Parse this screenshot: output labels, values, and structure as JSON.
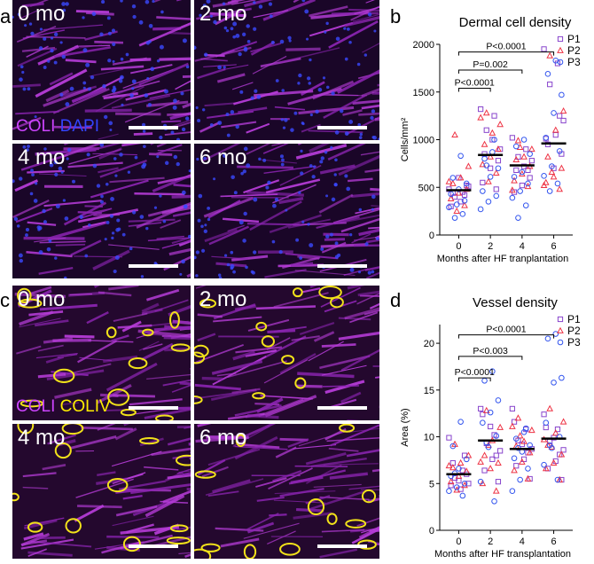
{
  "panels": {
    "a": {
      "letter": "a",
      "images": [
        {
          "label": "0 mo",
          "scale_bar": true,
          "stain": [
            "COLI",
            "DAPI"
          ]
        },
        {
          "label": "2 mo",
          "scale_bar": true
        },
        {
          "label": "4 mo",
          "scale_bar": true
        },
        {
          "label": "6 mo",
          "scale_bar": true
        }
      ],
      "stain_colors": {
        "COLI": "#cc44ff",
        "DAPI": "#3344ff"
      }
    },
    "c": {
      "letter": "c",
      "images": [
        {
          "label": "0 mo",
          "scale_bar": true,
          "stain": [
            "COLI",
            "COLIV"
          ]
        },
        {
          "label": "2 mo",
          "scale_bar": true
        },
        {
          "label": "4 mo",
          "scale_bar": true
        },
        {
          "label": "6 mo",
          "scale_bar": true
        }
      ],
      "stain_colors": {
        "COLI": "#cc44ff",
        "COLIV": "#ffee00"
      }
    },
    "b": {
      "letter": "b"
    },
    "d": {
      "letter": "d"
    }
  },
  "chart_data": [
    {
      "type": "scatter",
      "title": "Dermal cell density",
      "xlabel": "Months after HF tranplantation",
      "ylabel": "Cells/mm²",
      "categories": [
        "0",
        "2",
        "4",
        "6"
      ],
      "ylim": [
        0,
        2000
      ],
      "yticks": [
        "0",
        "500",
        "1000",
        "1500",
        "2000"
      ],
      "means": [
        470,
        840,
        730,
        960
      ],
      "legend_position": "top-right",
      "series": [
        {
          "name": "P1",
          "marker": "square",
          "color": "#8844cc",
          "values": [
            [
              480,
              450,
              400,
              510,
              350,
              440,
              520,
              600,
              300,
              420
            ],
            [
              1320,
              1250,
              1100,
              900,
              1000,
              850,
              780,
              700,
              550,
              480
            ],
            [
              1020,
              900,
              820,
              780,
              720,
              680,
              600,
              520,
              450,
              680
            ],
            [
              1950,
              1800,
              1580,
              1200,
              1050,
              950,
              850,
              700,
              1010,
              1250
            ]
          ]
        },
        {
          "name": "P2",
          "marker": "triangle",
          "color": "#ee3344",
          "values": [
            [
              1050,
              720,
              600,
              540,
              480,
              440,
              380,
              310,
              250,
              560
            ],
            [
              1280,
              1160,
              1070,
              950,
              900,
              820,
              740,
              650,
              560,
              1230
            ],
            [
              990,
              900,
              820,
              790,
              720,
              640,
              570,
              510,
              920,
              470
            ],
            [
              1880,
              1300,
              1100,
              820,
              700,
              610,
              550,
              480,
              660,
              520
            ]
          ]
        },
        {
          "name": "P3",
          "marker": "circle",
          "color": "#3355ee",
          "values": [
            [
              830,
              600,
              540,
              480,
              430,
              360,
              320,
              290,
              220,
              180
            ],
            [
              870,
              800,
              700,
              610,
              460,
              410,
              350,
              270,
              1000,
              730
            ],
            [
              1000,
              930,
              850,
              660,
              610,
              540,
              460,
              390,
              310,
              180
            ],
            [
              1830,
              1690,
              1470,
              1280,
              1020,
              880,
              720,
              620,
              540,
              460
            ]
          ]
        }
      ],
      "annotations": [
        {
          "text": "P<0.0001",
          "from": "0",
          "to": "6",
          "y": 1920
        },
        {
          "text": "P=0.002",
          "from": "0",
          "to": "4",
          "y": 1730
        },
        {
          "text": "P<0.0001",
          "from": "0",
          "to": "2",
          "y": 1540
        }
      ]
    },
    {
      "type": "scatter",
      "title": "Vessel density",
      "xlabel": "Months after HF transplantation",
      "ylabel": "Area (%)",
      "categories": [
        "0",
        "2",
        "4",
        "6"
      ],
      "ylim": [
        0,
        22
      ],
      "yticks": [
        "0",
        "5",
        "10",
        "15",
        "20"
      ],
      "means": [
        6.0,
        9.6,
        8.7,
        9.8
      ],
      "legend_position": "top-right",
      "series": [
        {
          "name": "P1",
          "marker": "square",
          "color": "#8844cc",
          "values": [
            [
              9.9,
              6.4,
              5.6,
              5.0,
              4.4,
              7.2,
              6.0,
              5.3,
              4.8,
              8.0
            ],
            [
              13.0,
              10.2,
              9.3,
              8.5,
              7.6,
              6.4,
              5.2,
              11.1,
              12.4,
              8.0
            ],
            [
              13.0,
              10.8,
              9.6,
              8.7,
              7.6,
              6.9,
              5.5,
              9.2,
              11.6,
              8.3
            ],
            [
              12.4,
              10.8,
              9.5,
              8.6,
              7.4,
              6.6,
              5.4,
              9.9,
              11.0,
              8.1
            ]
          ]
        },
        {
          "name": "P2",
          "marker": "triangle",
          "color": "#ee3344",
          "values": [
            [
              9.2,
              8.0,
              7.2,
              6.7,
              6.3,
              5.8,
              5.2,
              4.8,
              4.3,
              6.9
            ],
            [
              12.8,
              11.0,
              9.6,
              8.0,
              7.2,
              6.6,
              5.0,
              4.2,
              9.1,
              7.3
            ],
            [
              12.0,
              10.7,
              9.5,
              9.0,
              8.3,
              7.3,
              6.4,
              5.5,
              10.1,
              11.1
            ],
            [
              13.0,
              11.6,
              10.4,
              9.1,
              8.1,
              7.2,
              6.6,
              5.4,
              8.9,
              9.7
            ]
          ]
        },
        {
          "name": "P3",
          "marker": "circle",
          "color": "#3355ee",
          "values": [
            [
              11.6,
              9.0,
              7.6,
              6.6,
              5.8,
              5.0,
              4.6,
              4.2,
              3.7,
              6.1
            ],
            [
              17.0,
              16.0,
              13.9,
              12.6,
              11.5,
              10.1,
              8.9,
              5.2,
              3.1,
              9.4
            ],
            [
              10.5,
              9.8,
              9.1,
              8.4,
              7.7,
              6.6,
              5.4,
              4.2,
              10.9,
              8.8
            ],
            [
              21.0,
              20.5,
              16.3,
              15.8,
              11.5,
              10.0,
              8.8,
              7.0,
              5.4,
              9.1
            ]
          ]
        }
      ],
      "annotations": [
        {
          "text": "P<0.0001",
          "from": "0",
          "to": "6",
          "y": 20.9
        },
        {
          "text": "P<0.003",
          "from": "0",
          "to": "4",
          "y": 18.6
        },
        {
          "text": "P<0.0001",
          "from": "0",
          "to": "2",
          "y": 16.3
        }
      ]
    }
  ]
}
